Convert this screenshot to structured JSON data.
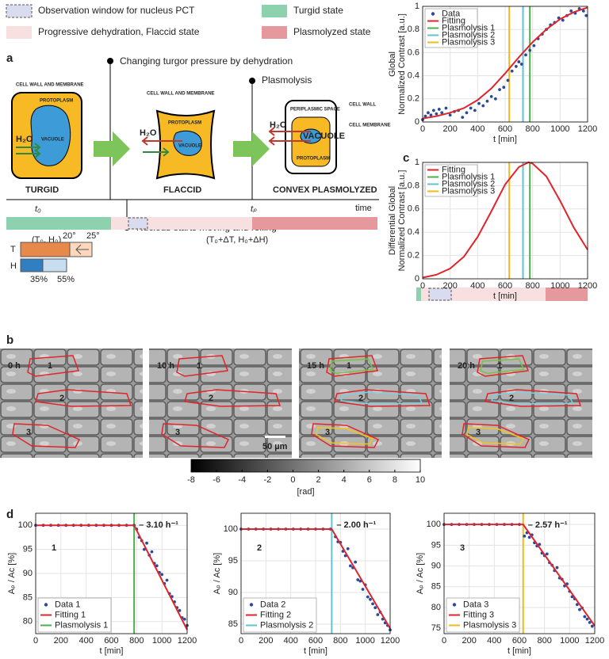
{
  "state_legend": [
    {
      "label": "Observation window for nucleus PCT",
      "color": "#d9dcef",
      "dashed": true
    },
    {
      "label": "Turgid state",
      "color": "#8ed1ae"
    },
    {
      "label": "Progressive dehydration, Flaccid state",
      "color": "#f8dfe0"
    },
    {
      "label": "Plasmolyzed state",
      "color": "#e5999c"
    }
  ],
  "panel_labels": [
    "a",
    "b",
    "c",
    "d"
  ],
  "diagram": {
    "events": [
      "Changing turgor pressure by dehydration",
      "Plasmolysis",
      "Nucleus starts moving and rolling"
    ],
    "time_labels": [
      "t₀",
      "tₚ",
      "time"
    ],
    "conditions": [
      "(T₀, H₀)",
      "(T₀+ΔT, H₀+ΔH)"
    ],
    "gauges": [
      "T",
      "H",
      "20°",
      "25°",
      "35%",
      "55%"
    ],
    "cells": [
      {
        "state": "TURGID",
        "labels": [
          "CELL WALL AND MEMBRANE",
          "PROTOPLASM",
          "VACUOLE",
          "H₂O"
        ]
      },
      {
        "state": "FLACCID",
        "labels": [
          "CELL WALL AND MEMBRANE",
          "PROTOPLASM",
          "VACUOLE",
          "H₂O"
        ]
      },
      {
        "state": "CONVEX PLASMOLYZED",
        "labels": [
          "PERIPLASMIC SPACE",
          "CELL WALL",
          "CELL MEMBRANE",
          "H₂O",
          "VACUOLE",
          "PROTOPLASM"
        ]
      }
    ]
  },
  "images": {
    "times": [
      "0 h",
      "10 h",
      "15 h",
      "20 h"
    ],
    "cell_labels": [
      "1",
      "2",
      "3"
    ],
    "cell_colors": [
      "#7cc242",
      "#7fd0dc",
      "#f5c518"
    ],
    "scale_bar": "50 µm"
  },
  "chart_data": [
    {
      "type": "scatter",
      "xlabel": "t [min]",
      "ylabel": [
        "Global",
        "Normalized Contrast [a.u.]"
      ],
      "xlim": [
        0,
        1200
      ],
      "ylim": [
        0,
        1
      ],
      "xticks": [
        0,
        200,
        400,
        600,
        800,
        1000,
        1200
      ],
      "yticks": [
        0,
        0.2,
        0.4,
        0.6,
        0.8,
        1
      ],
      "grid": true,
      "legend": "upper-left",
      "series": [
        {
          "name": "Data",
          "color": "#2a4b9b",
          "style": "marker",
          "x": [
            0,
            20,
            40,
            60,
            80,
            100,
            120,
            140,
            170,
            200,
            230,
            260,
            290,
            320,
            350,
            380,
            410,
            440,
            470,
            500,
            530,
            560,
            590,
            620,
            650,
            680,
            700,
            720,
            750,
            780,
            810,
            840,
            870,
            900,
            930,
            960,
            990,
            1020,
            1050,
            1080,
            1110,
            1140,
            1170,
            1190
          ],
          "values": [
            0.02,
            0.05,
            0.08,
            0.06,
            0.1,
            0.07,
            0.11,
            0.08,
            0.12,
            0.06,
            0.09,
            0.1,
            0.04,
            0.08,
            0.12,
            0.1,
            0.16,
            0.14,
            0.18,
            0.22,
            0.2,
            0.28,
            0.3,
            0.36,
            0.44,
            0.48,
            0.52,
            0.5,
            0.58,
            0.62,
            0.66,
            0.72,
            0.76,
            0.8,
            0.84,
            0.86,
            0.9,
            0.88,
            0.92,
            0.96,
            0.94,
            0.98,
            0.96,
            0.92
          ]
        },
        {
          "name": "Fitting",
          "color": "#e0242b",
          "style": "line",
          "x": [
            0,
            100,
            200,
            300,
            400,
            500,
            600,
            700,
            800,
            900,
            1000,
            1100,
            1200
          ],
          "values": [
            0.03,
            0.05,
            0.08,
            0.12,
            0.19,
            0.29,
            0.42,
            0.56,
            0.69,
            0.8,
            0.89,
            0.95,
            0.99
          ]
        },
        {
          "name": "Plasmolysis 1",
          "color": "#4bb04a",
          "style": "vline",
          "x": [
            780
          ]
        },
        {
          "name": "Plasmolysis 2",
          "color": "#5fc4cf",
          "style": "vline",
          "x": [
            730
          ]
        },
        {
          "name": "Plasmolysis 3",
          "color": "#f2b81c",
          "style": "vline",
          "x": [
            630
          ]
        }
      ]
    },
    {
      "type": "line",
      "xlabel": "t [min]",
      "ylabel": [
        "Differential Global",
        "Normalized Contrast [a.u.]"
      ],
      "xlim": [
        0,
        1200
      ],
      "ylim": [
        0,
        1
      ],
      "xticks": [
        0,
        200,
        400,
        600,
        800,
        1000,
        1200
      ],
      "yticks": [
        0,
        0.2,
        0.4,
        0.6,
        0.8,
        1
      ],
      "grid": true,
      "legend": "upper-left",
      "series": [
        {
          "name": "Fitting",
          "color": "#e0242b",
          "style": "line",
          "x": [
            0,
            100,
            200,
            300,
            400,
            500,
            600,
            700,
            770,
            800,
            900,
            1000,
            1100,
            1200
          ],
          "values": [
            0.01,
            0.035,
            0.088,
            0.19,
            0.36,
            0.58,
            0.81,
            0.96,
            1,
            0.99,
            0.88,
            0.67,
            0.44,
            0.25
          ]
        },
        {
          "name": "Plasmolysis 1",
          "color": "#4bb04a",
          "style": "vline",
          "x": [
            780
          ]
        },
        {
          "name": "Plasmolysis 2",
          "color": "#5fc4cf",
          "style": "vline",
          "x": [
            730
          ]
        },
        {
          "name": "Plasmolysis 3",
          "color": "#f2b81c",
          "style": "vline",
          "x": [
            630
          ]
        }
      ]
    },
    {
      "type": "colorbar",
      "xlim": [
        -8,
        10
      ],
      "xticks": [
        -8,
        -6,
        -4,
        -2,
        0,
        2,
        4,
        6,
        8,
        10
      ],
      "xlabel": "[rad]"
    },
    {
      "type": "scatter",
      "xlabel": "t [min]",
      "ylabel": [
        "Aₚ / Aᴄ [%]"
      ],
      "xlim": [
        0,
        1200
      ],
      "ylim": [
        77.5,
        102.5
      ],
      "xticks": [
        0,
        200,
        400,
        600,
        800,
        1000,
        1200
      ],
      "yticks": [
        80,
        85,
        90,
        95,
        100
      ],
      "grid": true,
      "legend": "lower-left",
      "annotation": "1",
      "annotation_color": "#6cbf3c",
      "rate_label": "– 3.10 h⁻¹",
      "series": [
        {
          "name": "Data 1",
          "color": "#2a4b9b",
          "style": "marker",
          "x": [
            0,
            60,
            120,
            180,
            240,
            300,
            360,
            420,
            480,
            540,
            600,
            660,
            720,
            780,
            800,
            820,
            840,
            860,
            880,
            900,
            920,
            940,
            960,
            980,
            1000,
            1020,
            1040,
            1060,
            1080,
            1100,
            1120,
            1140,
            1160,
            1180,
            1200
          ],
          "values": [
            100,
            100,
            100,
            100,
            100,
            100,
            100,
            100,
            100,
            100,
            100,
            100,
            100,
            100,
            99.2,
            97.5,
            96.8,
            95.0,
            96.3,
            93.8,
            94.5,
            92.1,
            91.6,
            90.2,
            89.8,
            87.9,
            88.6,
            85.8,
            85.2,
            84.1,
            82.9,
            82.3,
            80.8,
            80.5,
            79.2
          ]
        },
        {
          "name": "Fitting 1",
          "color": "#e0242b",
          "style": "line",
          "x": [
            0,
            780,
            1200
          ],
          "values": [
            100,
            100,
            78.3
          ]
        },
        {
          "name": "Plasmolysis 1",
          "color": "#4bb04a",
          "style": "vline",
          "x": [
            780
          ]
        }
      ]
    },
    {
      "type": "scatter",
      "xlabel": "t [min]",
      "ylabel": [
        "Aₚ / Aᴄ [%]"
      ],
      "xlim": [
        0,
        1200
      ],
      "ylim": [
        83.5,
        102.5
      ],
      "xticks": [
        0,
        200,
        400,
        600,
        800,
        1000,
        1200
      ],
      "yticks": [
        85,
        90,
        95,
        100
      ],
      "grid": true,
      "legend": "lower-left",
      "annotation": "2",
      "annotation_color": "#6cc6d3",
      "rate_label": "– 2.00 h⁻¹",
      "series": [
        {
          "name": "Data 2",
          "color": "#2a4b9b",
          "style": "marker",
          "x": [
            0,
            60,
            120,
            180,
            240,
            300,
            360,
            420,
            480,
            540,
            600,
            660,
            720,
            760,
            780,
            800,
            820,
            840,
            860,
            880,
            900,
            920,
            940,
            960,
            980,
            1000,
            1020,
            1040,
            1060,
            1080,
            1100,
            1120,
            1140,
            1160,
            1180,
            1200
          ],
          "values": [
            100,
            100,
            100,
            100,
            100,
            100,
            100,
            100,
            100,
            100,
            100,
            100,
            100,
            98.8,
            98.0,
            97.9,
            96.5,
            95.8,
            96.9,
            94.2,
            93.9,
            94.8,
            92.0,
            91.8,
            90.5,
            91.2,
            89.3,
            88.9,
            88.2,
            87.6,
            86.5,
            86.9,
            85.8,
            85.2,
            84.8,
            84.1
          ]
        },
        {
          "name": "Fitting 2",
          "color": "#e0242b",
          "style": "line",
          "x": [
            0,
            730,
            1200
          ],
          "values": [
            100,
            100,
            84.33
          ]
        },
        {
          "name": "Plasmolysis 2",
          "color": "#5fc4cf",
          "style": "vline",
          "x": [
            730
          ]
        }
      ]
    },
    {
      "type": "scatter",
      "xlabel": "t [min]",
      "ylabel": [
        "Aₚ / Aᴄ [%]"
      ],
      "xlim": [
        0,
        1200
      ],
      "ylim": [
        73.7,
        102.7
      ],
      "xticks": [
        0,
        200,
        400,
        600,
        800,
        1000,
        1200
      ],
      "yticks": [
        75,
        80,
        85,
        90,
        95,
        100
      ],
      "grid": true,
      "legend": "lower-left",
      "annotation": "3",
      "annotation_color": "#f2b81c",
      "rate_label": "– 2.57 h⁻¹",
      "series": [
        {
          "name": "Data 3",
          "color": "#2a4b9b",
          "style": "marker",
          "x": [
            0,
            60,
            120,
            180,
            240,
            300,
            360,
            420,
            480,
            540,
            600,
            640,
            660,
            680,
            700,
            720,
            740,
            760,
            780,
            800,
            820,
            840,
            860,
            880,
            900,
            920,
            940,
            960,
            980,
            1000,
            1020,
            1040,
            1060,
            1080,
            1100,
            1120,
            1140,
            1160,
            1180
          ],
          "values": [
            100,
            100,
            100,
            100,
            100,
            100,
            100,
            100,
            100,
            100,
            100,
            97.2,
            98.0,
            96.9,
            97.5,
            95.6,
            94.8,
            95.2,
            93.1,
            92.5,
            92.9,
            90.8,
            90.2,
            88.9,
            89.6,
            87.1,
            86.8,
            85.2,
            85.7,
            83.9,
            82.6,
            82.1,
            80.7,
            79.5,
            79.9,
            77.8,
            77.2,
            76.4,
            75.5
          ]
        },
        {
          "name": "Fitting 3",
          "color": "#e0242b",
          "style": "line",
          "x": [
            0,
            630,
            1200
          ],
          "values": [
            100,
            100,
            75.59
          ]
        },
        {
          "name": "Plasmolysis 3",
          "color": "#f2b81c",
          "style": "vline",
          "x": [
            630
          ]
        }
      ]
    }
  ]
}
